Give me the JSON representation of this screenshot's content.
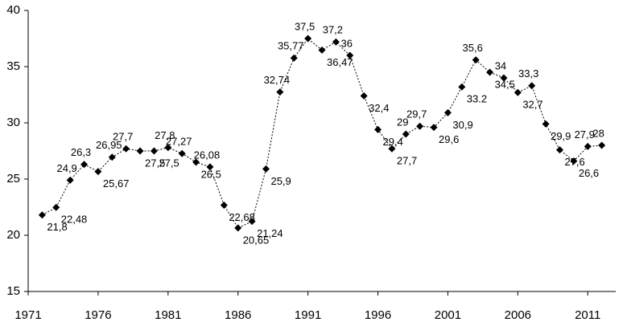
{
  "chart_data": {
    "type": "line",
    "x": [
      1972,
      1973,
      1974,
      1975,
      1976,
      1977,
      1978,
      1979,
      1980,
      1981,
      1982,
      1983,
      1984,
      1985,
      1986,
      1987,
      1988,
      1989,
      1990,
      1991,
      1992,
      1993,
      1994,
      1995,
      1996,
      1997,
      1998,
      1999,
      2000,
      2001,
      2002,
      2003,
      2004,
      2005,
      2006,
      2007,
      2008,
      2009,
      2010,
      2011,
      2012
    ],
    "values": [
      21.8,
      22.48,
      24.9,
      26.3,
      25.67,
      26.95,
      27.7,
      27.5,
      27.5,
      27.8,
      27.27,
      26.5,
      26.08,
      22.68,
      20.65,
      21.24,
      25.9,
      32.74,
      35.77,
      37.5,
      36.47,
      37.2,
      36,
      32.4,
      29.4,
      27.7,
      29,
      29.7,
      29.6,
      30.9,
      33.2,
      35.6,
      34.5,
      34,
      32.7,
      33.3,
      29.9,
      27.6,
      26.6,
      27.9,
      28
    ],
    "value_labels": [
      "21,8",
      "22,48",
      "24,9",
      "26,3",
      "25,67",
      "26,95",
      "27,7",
      "27,5",
      "27,5",
      "27,8",
      "27,27",
      "26,5",
      "26,08",
      "22,68",
      "20,65",
      "21,24",
      "25,9",
      "32,74",
      "35,77",
      "37,5",
      "36,47",
      "37,2",
      "36",
      "32,4",
      "29,4",
      "27,7",
      "29",
      "29,7",
      "29,6",
      "30,9",
      "33.2",
      "35,6",
      "34,5",
      "34",
      "32,7",
      "33,3",
      "29,9",
      "27,6",
      "26,6",
      "27,9",
      "28"
    ],
    "color": "#000000",
    "xlim": [
      1971,
      2013
    ],
    "xticks": [
      1971,
      1976,
      1981,
      1986,
      1991,
      1996,
      2001,
      2006,
      2011
    ],
    "ylim": [
      15,
      40
    ],
    "yticks": [
      15,
      20,
      25,
      30,
      35,
      40
    ],
    "grid": false
  }
}
